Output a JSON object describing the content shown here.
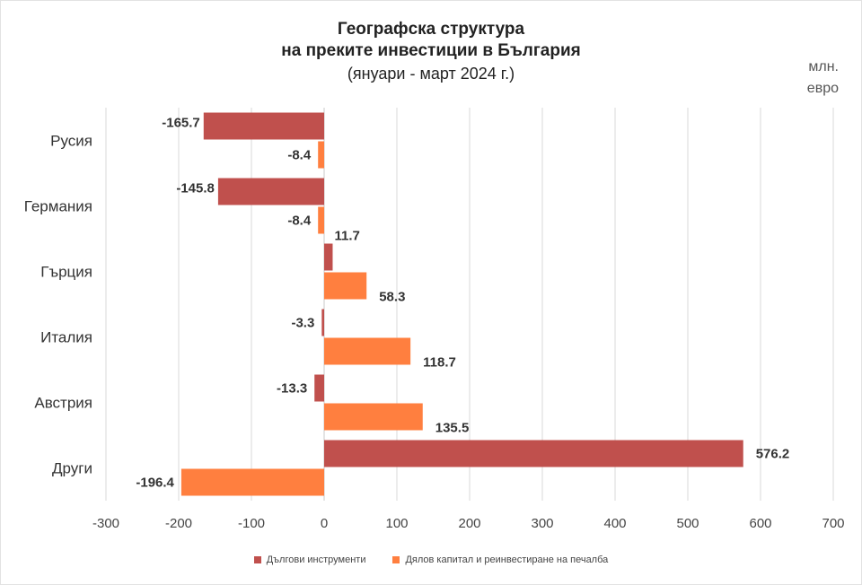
{
  "chart_data": {
    "type": "bar",
    "orientation": "horizontal",
    "title": "Географска структура",
    "title_line2": "на преките инвестиции в България",
    "subtitle": "(януари - март 2024 г.)",
    "unit_line1": "млн.",
    "unit_line2": "евро",
    "categories": [
      "Русия",
      "Германия",
      "Гърция",
      "Италия",
      "Австрия",
      "Други"
    ],
    "series": [
      {
        "name": "Дългови инструменти",
        "color": "#c0504d",
        "values": [
          -165.7,
          -145.8,
          11.7,
          -3.3,
          -13.3,
          576.2
        ]
      },
      {
        "name": "Дялов капитал и реинвестиране на печалба",
        "color": "#ff7f3f",
        "values": [
          -8.4,
          -8.4,
          58.3,
          118.7,
          135.5,
          -196.4
        ]
      }
    ],
    "data_labels": [
      [
        "-165.7",
        "-145.8",
        "11.7",
        "-3.3",
        "-13.3",
        "576.2"
      ],
      [
        "-8.4",
        "-8.4",
        "58.3",
        "118.7",
        "135.5",
        "-196.4"
      ]
    ],
    "xlim": [
      -300,
      700
    ],
    "xticks": [
      "-300",
      "-200",
      "-100",
      "0",
      "100",
      "200",
      "300",
      "400",
      "500",
      "600",
      "700"
    ],
    "grid": true,
    "legend_position": "bottom"
  }
}
